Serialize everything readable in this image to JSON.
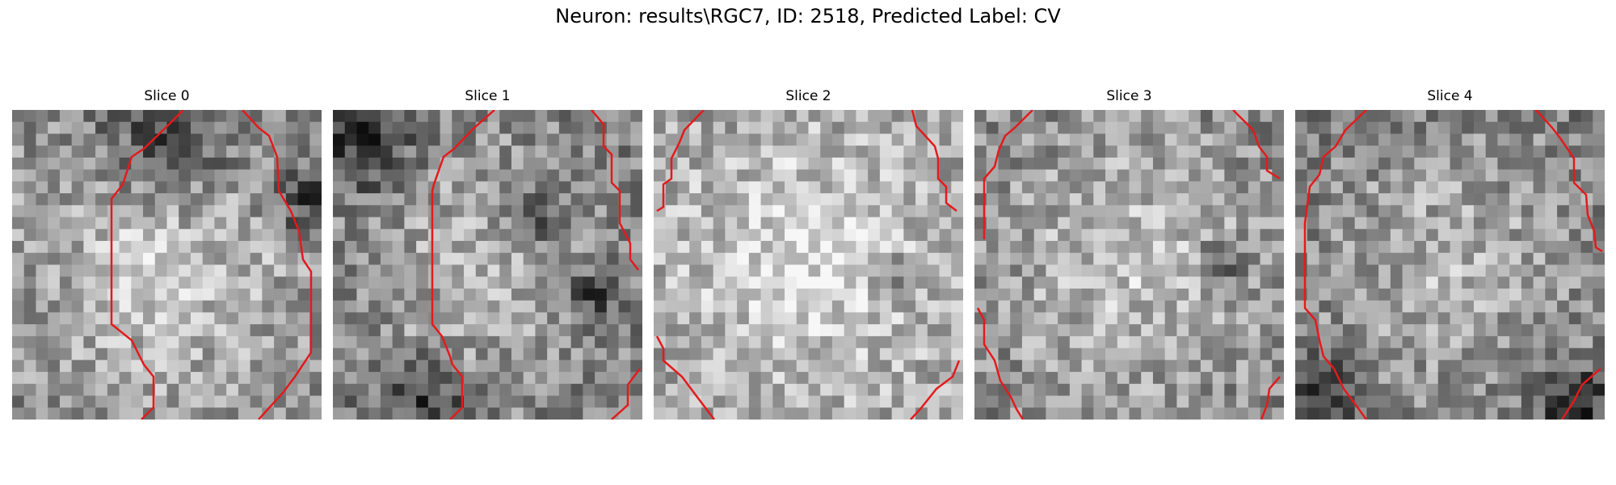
{
  "figure": {
    "title": "Neuron: results\\RGC7, ID: 2518, Predicted Label: CV"
  },
  "slices": [
    {
      "title": "Slice 0",
      "seed": 11,
      "dark_spots": [
        [
          0.5,
          0.08,
          0.35
        ],
        [
          0.95,
          0.3,
          0.2
        ]
      ],
      "brightness": 0.62
    },
    {
      "title": "Slice 1",
      "seed": 23,
      "dark_spots": [
        [
          0.1,
          0.1,
          0.25
        ],
        [
          0.3,
          0.92,
          0.2
        ],
        [
          0.65,
          0.35,
          0.15
        ],
        [
          0.85,
          0.6,
          0.15
        ]
      ],
      "brightness": 0.55
    },
    {
      "title": "Slice 2",
      "seed": 37,
      "dark_spots": [
        [
          0.78,
          0.55,
          0.12
        ]
      ],
      "brightness": 0.7
    },
    {
      "title": "Slice 3",
      "seed": 41,
      "dark_spots": [
        [
          0.8,
          0.48,
          0.1
        ]
      ],
      "brightness": 0.6
    },
    {
      "title": "Slice 4",
      "seed": 53,
      "dark_spots": [
        [
          0.1,
          0.95,
          0.2
        ],
        [
          0.9,
          0.95,
          0.2
        ]
      ],
      "brightness": 0.55
    }
  ],
  "contour_color": "#e41a1c"
}
